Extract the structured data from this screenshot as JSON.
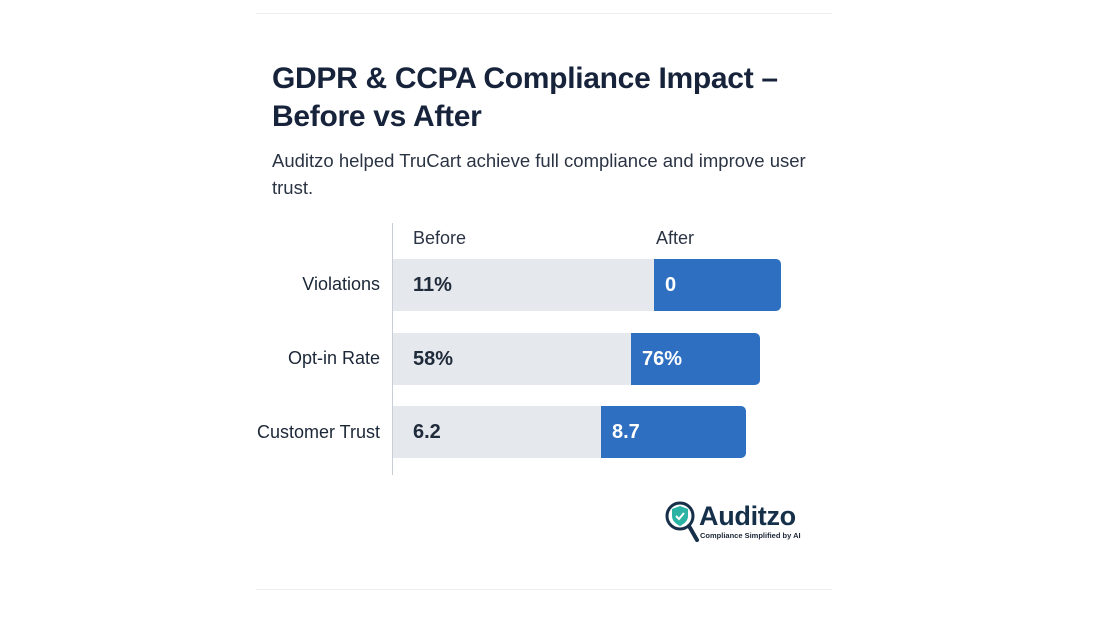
{
  "title": "GDPR & CCPA Compliance Impact – Before vs After",
  "subtitle": "Auditzo helped TruCart achieve full compliance and improve user trust.",
  "brand": {
    "name": "Auditzo",
    "tagline": "Compliance Simplified by AI"
  },
  "colors": {
    "before": "#e5e8ec",
    "after": "#2e6fc1",
    "title": "#16233a"
  },
  "chart_data": {
    "type": "bar",
    "orientation": "horizontal",
    "series_headers": [
      "Before",
      "After"
    ],
    "categories": [
      "Violations",
      "Opt-in Rate",
      "Customer Trust"
    ],
    "series": [
      {
        "name": "Before",
        "values": [
          11,
          58,
          6.2
        ],
        "labels": [
          "11%",
          "58%",
          "6.2"
        ]
      },
      {
        "name": "After",
        "values": [
          0,
          76,
          8.7
        ],
        "labels": [
          "0",
          "76%",
          "8.7"
        ]
      }
    ],
    "grid": false
  }
}
